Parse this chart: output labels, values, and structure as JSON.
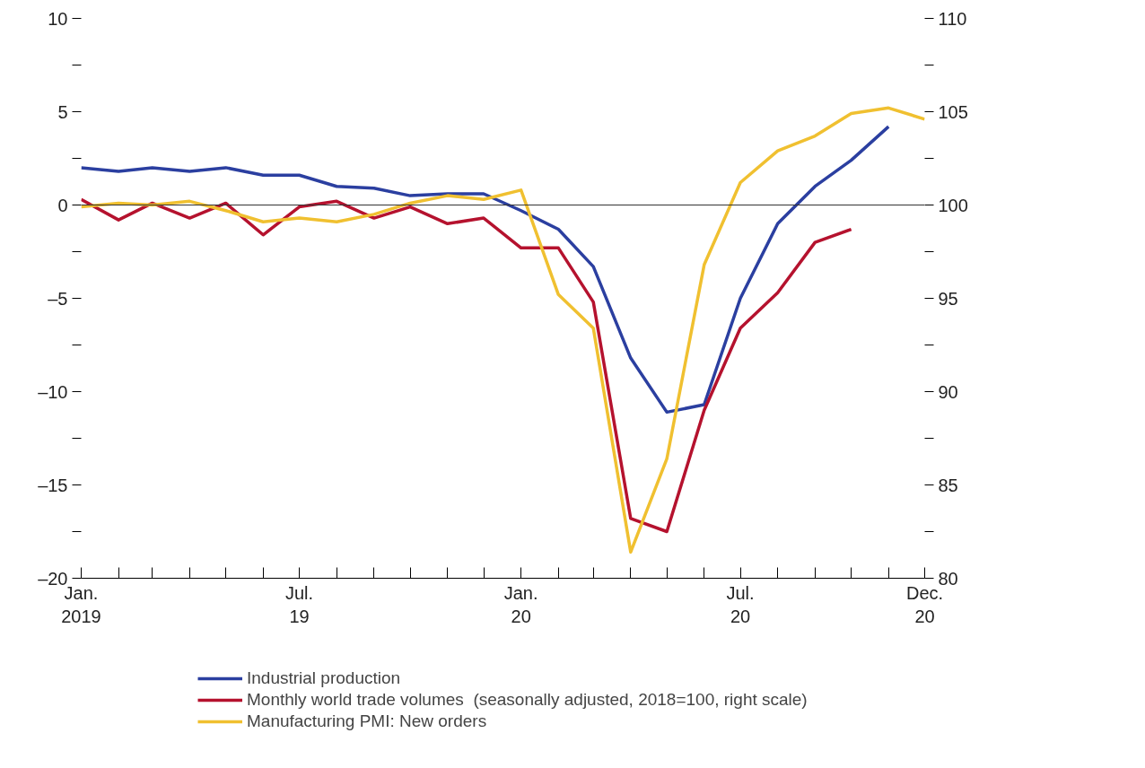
{
  "chart_data": {
    "type": "line",
    "x": [
      "2019-01",
      "2019-02",
      "2019-03",
      "2019-04",
      "2019-05",
      "2019-06",
      "2019-07",
      "2019-08",
      "2019-09",
      "2019-10",
      "2019-11",
      "2019-12",
      "2020-01",
      "2020-02",
      "2020-03",
      "2020-04",
      "2020-05",
      "2020-06",
      "2020-07",
      "2020-08",
      "2020-09",
      "2020-10",
      "2020-11",
      "2020-12"
    ],
    "series": [
      {
        "name": "Industrial production",
        "color": "#2b3fa0",
        "values": [
          2.0,
          1.8,
          2.0,
          1.8,
          2.0,
          1.6,
          1.6,
          1.0,
          0.9,
          0.5,
          0.6,
          0.6,
          -0.3,
          -1.3,
          -3.3,
          -8.2,
          -11.1,
          -10.7,
          -5.0,
          -1.0,
          1.0,
          2.4,
          4.2,
          null
        ]
      },
      {
        "name": "Monthly world trade volumes  (seasonally adjusted, 2018=100, right scale)",
        "color": "#b5122e",
        "axis": "y2",
        "values": [
          100.3,
          99.2,
          100.1,
          99.3,
          100.1,
          98.4,
          99.9,
          100.2,
          99.3,
          99.9,
          99.0,
          99.3,
          97.7,
          97.7,
          94.8,
          83.2,
          82.5,
          89.0,
          93.4,
          95.3,
          98.0,
          98.7,
          null,
          null
        ]
      },
      {
        "name": "Manufacturing PMI: New orders",
        "color": "#f0c030",
        "values": [
          -0.1,
          0.1,
          0.0,
          0.2,
          -0.3,
          -0.9,
          -0.7,
          -0.9,
          -0.5,
          0.1,
          0.5,
          0.3,
          0.8,
          -4.8,
          -6.6,
          -18.6,
          -13.6,
          -3.2,
          1.2,
          2.9,
          3.7,
          4.9,
          5.2,
          4.6
        ]
      }
    ],
    "xlim": [
      "2019-01",
      "2020-12"
    ],
    "xticks": [
      {
        "value": "2019-01",
        "label": "Jan.\n2019"
      },
      {
        "value": "2019-02",
        "label": null
      },
      {
        "value": "2019-03",
        "label": null
      },
      {
        "value": "2019-04",
        "label": null
      },
      {
        "value": "2019-05",
        "label": null
      },
      {
        "value": "2019-06",
        "label": null
      },
      {
        "value": "2019-07",
        "label": "Jul.\n19"
      },
      {
        "value": "2019-08",
        "label": null
      },
      {
        "value": "2019-09",
        "label": null
      },
      {
        "value": "2019-10",
        "label": null
      },
      {
        "value": "2019-11",
        "label": null
      },
      {
        "value": "2019-12",
        "label": null
      },
      {
        "value": "2020-01",
        "label": "Jan.\n20"
      },
      {
        "value": "2020-02",
        "label": null
      },
      {
        "value": "2020-03",
        "label": null
      },
      {
        "value": "2020-04",
        "label": null
      },
      {
        "value": "2020-05",
        "label": null
      },
      {
        "value": "2020-06",
        "label": null
      },
      {
        "value": "2020-07",
        "label": "Jul.\n20"
      },
      {
        "value": "2020-08",
        "label": null
      },
      {
        "value": "2020-09",
        "label": null
      },
      {
        "value": "2020-10",
        "label": null
      },
      {
        "value": "2020-11",
        "label": null
      },
      {
        "value": "2020-12",
        "label": "Dec.\n20"
      }
    ],
    "ylim": [
      -20,
      10
    ],
    "yticks": [
      {
        "value": -20,
        "label": "–20"
      },
      {
        "value": -17.5,
        "label": null
      },
      {
        "value": -15,
        "label": "–15"
      },
      {
        "value": -12.5,
        "label": null
      },
      {
        "value": -10,
        "label": "–10"
      },
      {
        "value": -7.5,
        "label": null
      },
      {
        "value": -5,
        "label": "–5"
      },
      {
        "value": -2.5,
        "label": null
      },
      0,
      {
        "value": 2.5,
        "label": null
      },
      5,
      {
        "value": 7.5,
        "label": null
      },
      10
    ],
    "y2lim": [
      80,
      110
    ],
    "y2ticks": [
      80,
      {
        "value": 82.5,
        "label": null
      },
      85,
      {
        "value": 87.5,
        "label": null
      },
      90,
      {
        "value": 92.5,
        "label": null
      },
      95,
      {
        "value": 97.5,
        "label": null
      },
      100,
      {
        "value": 102.5,
        "label": null
      },
      105,
      {
        "value": 107.5,
        "label": null
      },
      110
    ],
    "ref_lines": [
      {
        "axis": "y",
        "value": 0,
        "color": "#333333"
      }
    ],
    "grid": false,
    "legend": "bottom",
    "line_style": "solid",
    "marker": "none"
  }
}
